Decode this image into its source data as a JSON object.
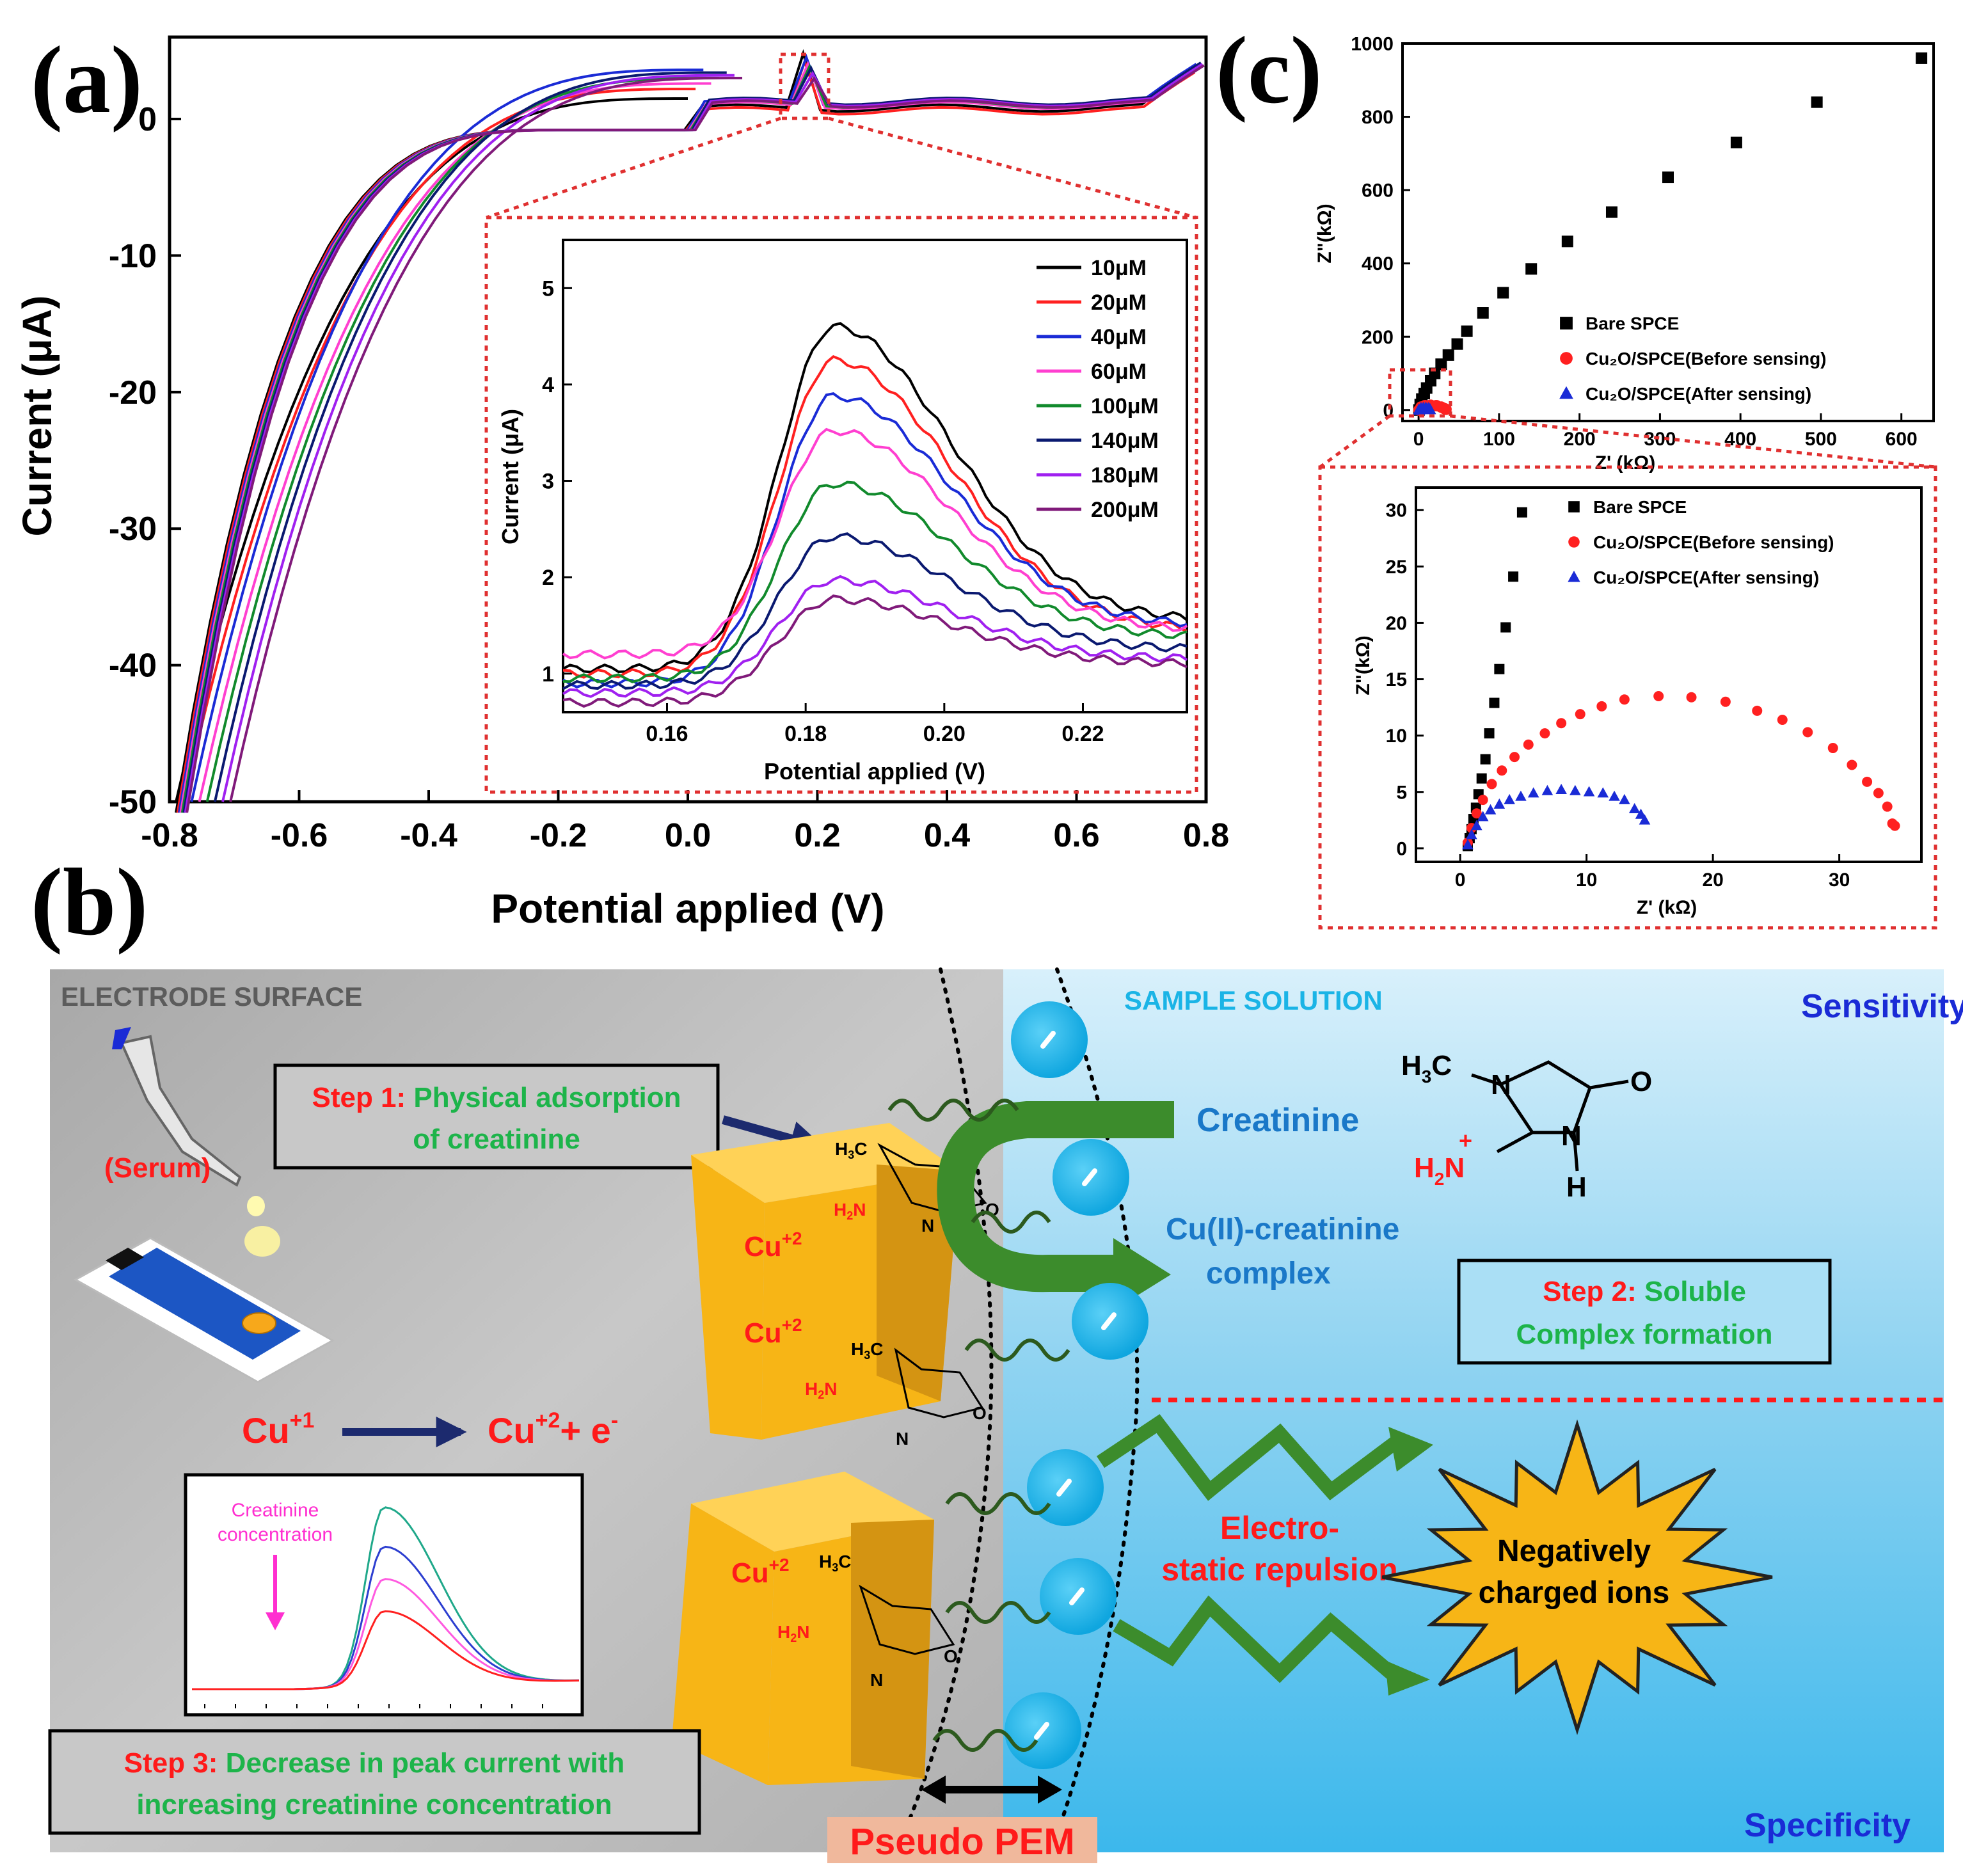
{
  "panel_labels": {
    "a": "(a)",
    "b": "(b)",
    "c": "(c)"
  },
  "chart_data": [
    {
      "id": "cv_main",
      "type": "line",
      "title": "",
      "xlabel": "Potential applied (V)",
      "ylabel": "Current (μA)",
      "xlim": [
        -0.8,
        0.8
      ],
      "ylim": [
        -50,
        6
      ],
      "xticks": [
        "-0.8",
        "-0.6",
        "-0.4",
        "-0.2",
        "0.0",
        "0.2",
        "0.4",
        "0.6",
        "0.8"
      ],
      "yticks": [
        "0",
        "-10",
        "-20",
        "-30",
        "-40",
        "-50"
      ],
      "series": [
        {
          "name": "10μM",
          "color": "#000000",
          "peak_x": 0.18,
          "peak_y": 4.2,
          "upper_end": 1.5,
          "mid_y": 0.8
        },
        {
          "name": "20μM",
          "color": "#ff2020",
          "peak_x": 0.18,
          "peak_y": 3.8,
          "upper_end": 2.2,
          "mid_y": 0.6
        },
        {
          "name": "40μM",
          "color": "#1a2bd6",
          "peak_x": 0.18,
          "peak_y": 3.5,
          "upper_end": 3.6,
          "mid_y": 1.2
        },
        {
          "name": "60μM",
          "color": "#ff3fd0",
          "peak_x": 0.18,
          "peak_y": 3.2,
          "upper_end": 2.6,
          "mid_y": 1.0
        },
        {
          "name": "100μM",
          "color": "#118a2c",
          "peak_x": 0.18,
          "peak_y": 2.9,
          "upper_end": 3.0,
          "mid_y": 1.1
        },
        {
          "name": "140μM",
          "color": "#0a1970",
          "peak_x": 0.18,
          "peak_y": 2.6,
          "upper_end": 3.4,
          "mid_y": 1.3
        },
        {
          "name": "180μM",
          "color": "#a020f0",
          "peak_x": 0.18,
          "peak_y": 2.3,
          "upper_end": 3.2,
          "mid_y": 1.2
        },
        {
          "name": "200μM",
          "color": "#801a7a",
          "peak_x": 0.18,
          "peak_y": 2.0,
          "upper_end": 3.0,
          "mid_y": 1.1
        }
      ]
    },
    {
      "id": "cv_inset",
      "type": "line",
      "title": "",
      "xlabel": "Potential applied (V)",
      "ylabel": "Current (μA)",
      "xlim": [
        0.145,
        0.235
      ],
      "ylim": [
        0.6,
        5.5
      ],
      "xticks": [
        "0.16",
        "0.18",
        "0.20",
        "0.22"
      ],
      "yticks": [
        "1",
        "2",
        "3",
        "4",
        "5"
      ],
      "legend_position": "top-right",
      "series": [
        {
          "name": "10μM",
          "color": "#000000",
          "base": 1.05,
          "peak": 4.6,
          "end": 1.55
        },
        {
          "name": "20μM",
          "color": "#ff2020",
          "base": 1.0,
          "peak": 4.25,
          "end": 1.45
        },
        {
          "name": "40μM",
          "color": "#1a2bd6",
          "base": 0.9,
          "peak": 3.88,
          "end": 1.5
        },
        {
          "name": "60μM",
          "color": "#ff3fd0",
          "base": 1.2,
          "peak": 3.52,
          "end": 1.45
        },
        {
          "name": "100μM",
          "color": "#118a2c",
          "base": 0.95,
          "peak": 2.97,
          "end": 1.38
        },
        {
          "name": "140μM",
          "color": "#0a1970",
          "base": 0.88,
          "peak": 2.42,
          "end": 1.25
        },
        {
          "name": "180μM",
          "color": "#a020f0",
          "base": 0.8,
          "peak": 1.97,
          "end": 1.15
        },
        {
          "name": "200μM",
          "color": "#801a7a",
          "base": 0.7,
          "peak": 1.77,
          "end": 1.1
        }
      ]
    },
    {
      "id": "eis_main",
      "type": "scatter",
      "title": "",
      "xlabel": "Z' (kΩ)",
      "ylabel": "Z\"(kΩ)",
      "xlim": [
        -20,
        640
      ],
      "ylim": [
        -30,
        1000
      ],
      "xticks": [
        "0",
        "100",
        "200",
        "300",
        "400",
        "500",
        "600"
      ],
      "yticks": [
        "0",
        "200",
        "400",
        "600",
        "800",
        "1000"
      ],
      "legend_position": "lower-right",
      "series": [
        {
          "name": "Bare SPCE",
          "marker": "square",
          "color": "#000000",
          "x": [
            0.5,
            2,
            4,
            7,
            10,
            15,
            20,
            28,
            37,
            48,
            60,
            80,
            105,
            140,
            185,
            240,
            310,
            395,
            495,
            625
          ],
          "y": [
            0,
            15,
            30,
            45,
            60,
            80,
            100,
            125,
            150,
            180,
            215,
            265,
            320,
            385,
            460,
            540,
            635,
            730,
            840,
            960
          ]
        },
        {
          "name": "Cu2O/SPCE(Before sensing)",
          "marker": "circle",
          "color": "#ff2020",
          "x": [
            0.5,
            3,
            8,
            15,
            22,
            28,
            32,
            34
          ],
          "y": [
            0,
            8,
            12,
            13,
            12,
            8,
            4,
            2
          ]
        },
        {
          "name": "Cu2O/SPCE(After sensing)",
          "marker": "triangle",
          "color": "#1a2bd6",
          "x": [
            0.5,
            3,
            6,
            9,
            12,
            14
          ],
          "y": [
            0,
            4,
            5,
            5,
            4,
            2
          ]
        }
      ]
    },
    {
      "id": "eis_inset",
      "type": "scatter",
      "title": "",
      "xlabel": "Z' (kΩ)",
      "ylabel": "Z\"(kΩ)",
      "xlim": [
        -3.5,
        36.5
      ],
      "ylim": [
        -1.2,
        32
      ],
      "xticks": [
        "0",
        "10",
        "20",
        "30"
      ],
      "yticks": [
        "0",
        "5",
        "10",
        "15",
        "20",
        "25",
        "30"
      ],
      "legend_position": "top-right",
      "series": [
        {
          "name": "Bare SPCE",
          "marker": "square",
          "color": "#000000",
          "x": [
            0.6,
            0.75,
            0.9,
            1.05,
            1.25,
            1.45,
            1.7,
            2.0,
            2.3,
            2.7,
            3.1,
            3.6,
            4.2,
            4.9
          ],
          "y": [
            0.2,
            0.9,
            1.7,
            2.6,
            3.6,
            4.8,
            6.2,
            7.9,
            10.2,
            12.9,
            15.9,
            19.6,
            24.1,
            29.8
          ]
        },
        {
          "name": "Cu2O/SPCE(Before sensing)",
          "marker": "circle",
          "color": "#ff2020",
          "x": [
            0.6,
            0.9,
            1.3,
            1.8,
            2.5,
            3.3,
            4.3,
            5.4,
            6.7,
            8.0,
            9.5,
            11.2,
            13.0,
            15.7,
            18.3,
            21.0,
            23.5,
            25.5,
            27.5,
            29.5,
            31.0,
            32.2,
            33.1,
            33.8,
            34.2,
            34.4
          ],
          "y": [
            0.5,
            1.8,
            3.1,
            4.3,
            5.7,
            6.9,
            8.1,
            9.2,
            10.2,
            11.1,
            11.9,
            12.6,
            13.2,
            13.5,
            13.4,
            13.0,
            12.2,
            11.4,
            10.3,
            8.9,
            7.4,
            5.9,
            4.9,
            3.7,
            2.2,
            2.0
          ]
        },
        {
          "name": "Cu2O/SPCE(After sensing)",
          "marker": "triangle",
          "color": "#1a2bd6",
          "x": [
            0.6,
            0.9,
            1.3,
            1.8,
            2.4,
            3.1,
            3.9,
            4.8,
            5.8,
            6.9,
            8.0,
            9.1,
            10.2,
            11.3,
            12.2,
            13.0,
            13.8,
            14.3,
            14.6
          ],
          "y": [
            0.3,
            1.2,
            2.0,
            2.8,
            3.4,
            3.9,
            4.3,
            4.6,
            4.9,
            5.1,
            5.2,
            5.1,
            5.0,
            4.9,
            4.6,
            4.3,
            3.5,
            3.0,
            2.5
          ]
        }
      ]
    }
  ],
  "scheme": {
    "electrode_surface": "ELECTRODE SURFACE",
    "sample_solution": "SAMPLE SOLUTION",
    "sensitivity": "Sensitivity",
    "specificity": "Specificity",
    "serum": "(Serum)",
    "step1_prefix": "Step 1:",
    "step1_text_l1": "Physical adsorption",
    "step1_text_l2": "of creatinine",
    "step2_prefix": "Step 2:",
    "step2_text_l1": "Soluble",
    "step2_text_l2": "Complex formation",
    "step3_prefix": "Step 3:",
    "step3_text_l1": "Decrease in peak current with",
    "step3_text_l2": "increasing creatinine concentration",
    "creatinine": "Creatinine",
    "complex_l1": "Cu(II)-creatinine",
    "complex_l2": "complex",
    "cu_plus1": "Cu",
    "cu_plus1_sup": "+1",
    "cu_plus2": "Cu",
    "cu_plus2_sup": "+2",
    "electron": "+ e",
    "electron_sup": "-",
    "cu2_label": "Cu",
    "cu2_sup": "+2",
    "repulsion_l1": "Electro-",
    "repulsion_l2": "static repulsion",
    "neg_ions_l1": "Negatively",
    "neg_ions_l2": "charged ions",
    "pseudo_pem": "Pseudo PEM",
    "mini_chart_label_l1": "Creatinine",
    "mini_chart_label_l2": "concentration",
    "mol_h3c": "H",
    "mol_h3c_sub": "3",
    "mol_c": "C",
    "mol_n": "N",
    "mol_o": "O",
    "mol_h": "H",
    "mol_h2n": "H",
    "mol_h2n_sub": "2",
    "mol_h2n_n": "N",
    "mol_plus": "+",
    "colors": {
      "red": "#ff1a1a",
      "green": "#1db44a",
      "blue_text": "#1a78c8",
      "navy": "#1c2a6e",
      "gold": "#f7b516",
      "cyan": "#1ab4e6",
      "dark_green": "#2c5a1e",
      "arrow_green": "#3c8c2c",
      "pem_box": "#f0b89c"
    }
  },
  "mini_chart": {
    "series_colors": [
      "#1fa88a",
      "#2c3ed0",
      "#ff5ae0",
      "#ff2020"
    ],
    "peaks": [
      1.0,
      0.78,
      0.6,
      0.42
    ]
  }
}
